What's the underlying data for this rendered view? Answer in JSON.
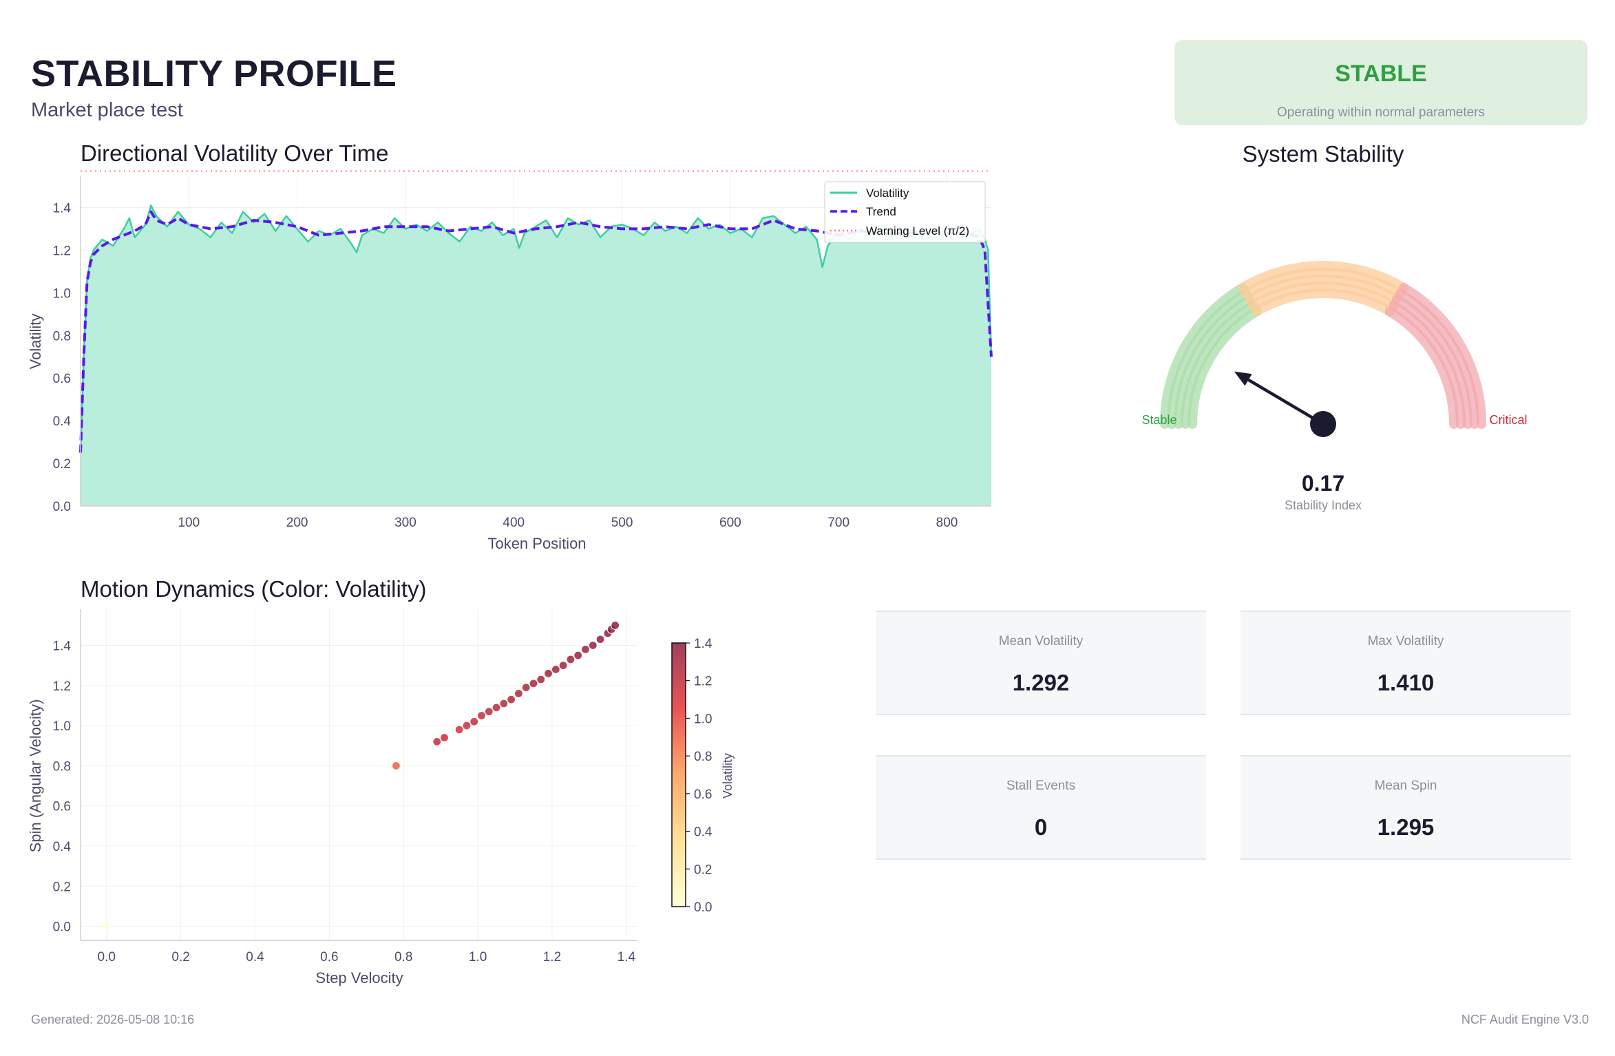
{
  "header": {
    "title": "STABILITY PROFILE",
    "subtitle": "Market place test"
  },
  "status": {
    "label": "STABLE",
    "description": "Operating within normal parameters",
    "color": "#2ea043",
    "background": "#dff0e0"
  },
  "chart_data": [
    {
      "type": "area",
      "title": "Directional Volatility Over Time",
      "xlabel": "Token Position",
      "ylabel": "Volatility",
      "xlim": [
        0,
        841
      ],
      "ylim": [
        0,
        1.55
      ],
      "xticks": [
        100,
        200,
        300,
        400,
        500,
        600,
        700,
        800
      ],
      "yticks": [
        0.0,
        0.2,
        0.4,
        0.6,
        0.8,
        1.0,
        1.2,
        1.4
      ],
      "grid": true,
      "legend_position": "top-right",
      "series": [
        {
          "name": "Volatility",
          "color": "#3ecf9c",
          "fill": "#b9eddc",
          "x": [
            0,
            3,
            6,
            9,
            12,
            20,
            30,
            40,
            45,
            50,
            60,
            65,
            70,
            80,
            90,
            100,
            110,
            120,
            130,
            140,
            150,
            160,
            170,
            180,
            190,
            200,
            210,
            220,
            230,
            240,
            250,
            255,
            260,
            270,
            280,
            290,
            300,
            310,
            320,
            330,
            340,
            350,
            360,
            370,
            380,
            390,
            400,
            405,
            410,
            420,
            430,
            440,
            450,
            460,
            470,
            480,
            490,
            500,
            510,
            520,
            530,
            540,
            550,
            560,
            570,
            580,
            590,
            600,
            610,
            620,
            630,
            640,
            650,
            660,
            670,
            680,
            685,
            690,
            700,
            710,
            720,
            730,
            740,
            750,
            760,
            770,
            780,
            790,
            800,
            810,
            820,
            830,
            835,
            838,
            841
          ],
          "y": [
            0.25,
            0.7,
            1.05,
            1.16,
            1.2,
            1.25,
            1.22,
            1.3,
            1.35,
            1.26,
            1.32,
            1.41,
            1.36,
            1.31,
            1.38,
            1.32,
            1.3,
            1.26,
            1.33,
            1.28,
            1.38,
            1.33,
            1.37,
            1.29,
            1.36,
            1.3,
            1.24,
            1.29,
            1.27,
            1.3,
            1.23,
            1.19,
            1.27,
            1.3,
            1.28,
            1.35,
            1.3,
            1.32,
            1.29,
            1.33,
            1.28,
            1.24,
            1.31,
            1.29,
            1.33,
            1.27,
            1.3,
            1.21,
            1.28,
            1.31,
            1.34,
            1.26,
            1.35,
            1.32,
            1.34,
            1.26,
            1.31,
            1.32,
            1.3,
            1.27,
            1.33,
            1.29,
            1.31,
            1.28,
            1.35,
            1.3,
            1.32,
            1.28,
            1.3,
            1.26,
            1.35,
            1.36,
            1.32,
            1.28,
            1.31,
            1.25,
            1.12,
            1.22,
            1.3,
            1.25,
            1.3,
            1.28,
            1.32,
            1.26,
            1.3,
            1.29,
            1.25,
            1.3,
            1.28,
            1.31,
            1.27,
            1.3,
            1.25,
            1.2,
            0.7
          ]
        },
        {
          "name": "Trend",
          "color": "#5b16f0",
          "style": "dashed",
          "x": [
            0,
            3,
            6,
            9,
            12,
            20,
            30,
            40,
            50,
            60,
            65,
            70,
            80,
            90,
            100,
            120,
            140,
            160,
            180,
            200,
            220,
            240,
            260,
            280,
            300,
            320,
            340,
            360,
            380,
            400,
            420,
            440,
            460,
            480,
            500,
            520,
            540,
            560,
            580,
            600,
            620,
            640,
            660,
            680,
            700,
            720,
            740,
            760,
            780,
            800,
            820,
            830,
            835,
            838,
            841
          ],
          "y": [
            0.25,
            0.7,
            1.05,
            1.14,
            1.18,
            1.22,
            1.25,
            1.27,
            1.29,
            1.32,
            1.38,
            1.34,
            1.32,
            1.35,
            1.32,
            1.3,
            1.31,
            1.34,
            1.33,
            1.31,
            1.27,
            1.28,
            1.29,
            1.31,
            1.31,
            1.31,
            1.29,
            1.3,
            1.31,
            1.28,
            1.3,
            1.31,
            1.33,
            1.31,
            1.3,
            1.3,
            1.31,
            1.3,
            1.32,
            1.3,
            1.3,
            1.34,
            1.3,
            1.29,
            1.27,
            1.29,
            1.28,
            1.28,
            1.28,
            1.28,
            1.28,
            1.26,
            1.2,
            0.95,
            0.7
          ]
        },
        {
          "name": "Warning Level (π/2)",
          "color": "#ff7f7f",
          "style": "dotted",
          "y": 1.5708
        }
      ]
    },
    {
      "type": "scatter",
      "title": "Motion Dynamics (Color: Volatility)",
      "xlabel": "Step Velocity",
      "ylabel": "Spin (Angular Velocity)",
      "xlim": [
        -0.07,
        1.43
      ],
      "ylim": [
        -0.07,
        1.58
      ],
      "xticks": [
        0.0,
        0.2,
        0.4,
        0.6,
        0.8,
        1.0,
        1.2,
        1.4
      ],
      "yticks": [
        0.0,
        0.2,
        0.4,
        0.6,
        0.8,
        1.0,
        1.2,
        1.4
      ],
      "grid": true,
      "colorbar": {
        "label": "Volatility",
        "ticks": [
          0.0,
          0.2,
          0.4,
          0.6,
          0.8,
          1.0,
          1.2,
          1.4
        ],
        "range": [
          0.0,
          1.4
        ]
      },
      "points": [
        {
          "x": 0.0,
          "y": 0.0,
          "c": 0.0
        },
        {
          "x": 0.78,
          "y": 0.8,
          "c": 0.9
        },
        {
          "x": 0.89,
          "y": 0.92,
          "c": 1.18
        },
        {
          "x": 0.91,
          "y": 0.94,
          "c": 1.2
        },
        {
          "x": 0.95,
          "y": 0.98,
          "c": 1.12
        },
        {
          "x": 0.97,
          "y": 1.0,
          "c": 1.15
        },
        {
          "x": 0.99,
          "y": 1.02,
          "c": 1.18
        },
        {
          "x": 1.01,
          "y": 1.05,
          "c": 1.2
        },
        {
          "x": 1.03,
          "y": 1.07,
          "c": 1.22
        },
        {
          "x": 1.05,
          "y": 1.09,
          "c": 1.24
        },
        {
          "x": 1.07,
          "y": 1.11,
          "c": 1.25
        },
        {
          "x": 1.09,
          "y": 1.13,
          "c": 1.26
        },
        {
          "x": 1.11,
          "y": 1.16,
          "c": 1.27
        },
        {
          "x": 1.13,
          "y": 1.19,
          "c": 1.28
        },
        {
          "x": 1.15,
          "y": 1.21,
          "c": 1.29
        },
        {
          "x": 1.17,
          "y": 1.23,
          "c": 1.3
        },
        {
          "x": 1.19,
          "y": 1.26,
          "c": 1.31
        },
        {
          "x": 1.21,
          "y": 1.28,
          "c": 1.31
        },
        {
          "x": 1.23,
          "y": 1.3,
          "c": 1.32
        },
        {
          "x": 1.25,
          "y": 1.33,
          "c": 1.33
        },
        {
          "x": 1.27,
          "y": 1.35,
          "c": 1.34
        },
        {
          "x": 1.29,
          "y": 1.38,
          "c": 1.35
        },
        {
          "x": 1.31,
          "y": 1.4,
          "c": 1.36
        },
        {
          "x": 1.33,
          "y": 1.43,
          "c": 1.37
        },
        {
          "x": 1.35,
          "y": 1.46,
          "c": 1.38
        },
        {
          "x": 1.36,
          "y": 1.48,
          "c": 1.39
        },
        {
          "x": 1.37,
          "y": 1.5,
          "c": 1.41
        }
      ]
    }
  ],
  "gauge": {
    "title": "System Stability",
    "value": 0.17,
    "value_text": "0.17",
    "caption": "Stability Index",
    "min_label": "Stable",
    "max_label": "Critical",
    "min_color": "#2ea043",
    "max_color": "#d62839",
    "zones": [
      {
        "from": 0.0,
        "to": 0.33,
        "color": "#a9dca9"
      },
      {
        "from": 0.33,
        "to": 0.67,
        "color": "#fccb98"
      },
      {
        "from": 0.67,
        "to": 1.0,
        "color": "#f2a8ae"
      }
    ]
  },
  "metrics": [
    {
      "label": "Mean Volatility",
      "value": "1.292"
    },
    {
      "label": "Max Volatility",
      "value": "1.410"
    },
    {
      "label": "Stall Events",
      "value": "0"
    },
    {
      "label": "Mean Spin",
      "value": "1.295"
    }
  ],
  "footer": {
    "generated": "Generated: 2026-05-08 10:16",
    "engine": "NCF Audit Engine V3.0"
  }
}
